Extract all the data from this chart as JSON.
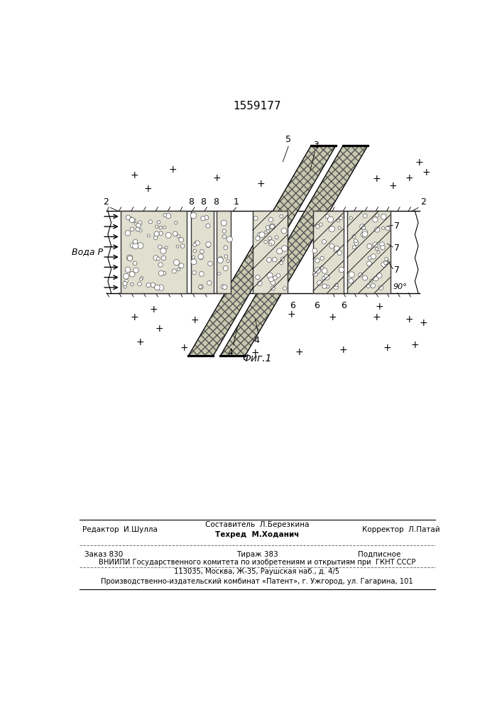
{
  "title": "1559177",
  "fig_label": "Фиг.1",
  "bg_color": "#ffffff",
  "editor_line1": "Редактор  И.Шулла",
  "editor_line2_center": "Составитель  Л.Березкина",
  "editor_line2_col2": "Техред  М.Ходанич",
  "editor_line2_col3": "Корректор  Л.Патай",
  "order_text": "Заказ 830",
  "tirazh_text": "Тираж 383",
  "podpisnoe_text": "Подписное",
  "vnipi_text": "ВНИИПИ Государственного комитета по изобретениям и открытиям при  ГКНТ СССР",
  "address_text": "113035, Москва, Ж-35, Раушская наб., д. 4/5",
  "publisher_text": "Производственно-издательский комбинат «Патент», г. Ужгород, ул. Гагарина, 101",
  "water_label": "Вода P"
}
